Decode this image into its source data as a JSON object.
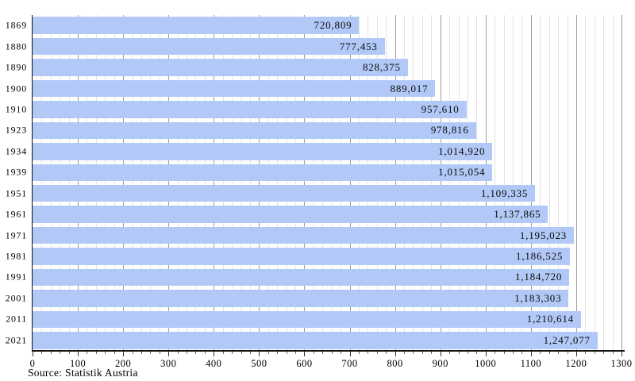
{
  "chart_data": {
    "type": "bar",
    "orientation": "horizontal",
    "title": "",
    "xlabel": "",
    "ylabel": "",
    "categories": [
      "1869",
      "1880",
      "1890",
      "1900",
      "1910",
      "1923",
      "1934",
      "1939",
      "1951",
      "1961",
      "1971",
      "1981",
      "1991",
      "2001",
      "2011",
      "2021"
    ],
    "values": [
      720809,
      777453,
      828375,
      889017,
      957610,
      978816,
      1014920,
      1015054,
      1109335,
      1137865,
      1195023,
      1186525,
      1184720,
      1183303,
      1210614,
      1247077
    ],
    "value_labels": [
      "720,809",
      "777,453",
      "828,375",
      "889,017",
      "957,610",
      "978,816",
      "1,014,920",
      "1,015,054",
      "1,109,335",
      "1,137,865",
      "1,195,023",
      "1,186,525",
      "1,184,720",
      "1,183,303",
      "1,210,614",
      "1,247,077"
    ],
    "xlim": [
      0,
      1300000
    ],
    "x_tick_step": 100000,
    "x_minor_step": 20000,
    "x_tick_labels": [
      "0",
      "100",
      "200",
      "300",
      "400",
      "500",
      "600",
      "700",
      "800",
      "900",
      "1000",
      "1100",
      "1200",
      "1300"
    ],
    "grid": "vertical, major and minor",
    "legend": "none",
    "source": "Source: Statistik Austria",
    "colors": {
      "bar_fill": "#b2c9f7",
      "grid_major": "#9c9c9c",
      "grid_minor": "#e3e3e3",
      "axis": "#111111",
      "text": "#000000",
      "background": "#ffffff"
    }
  }
}
